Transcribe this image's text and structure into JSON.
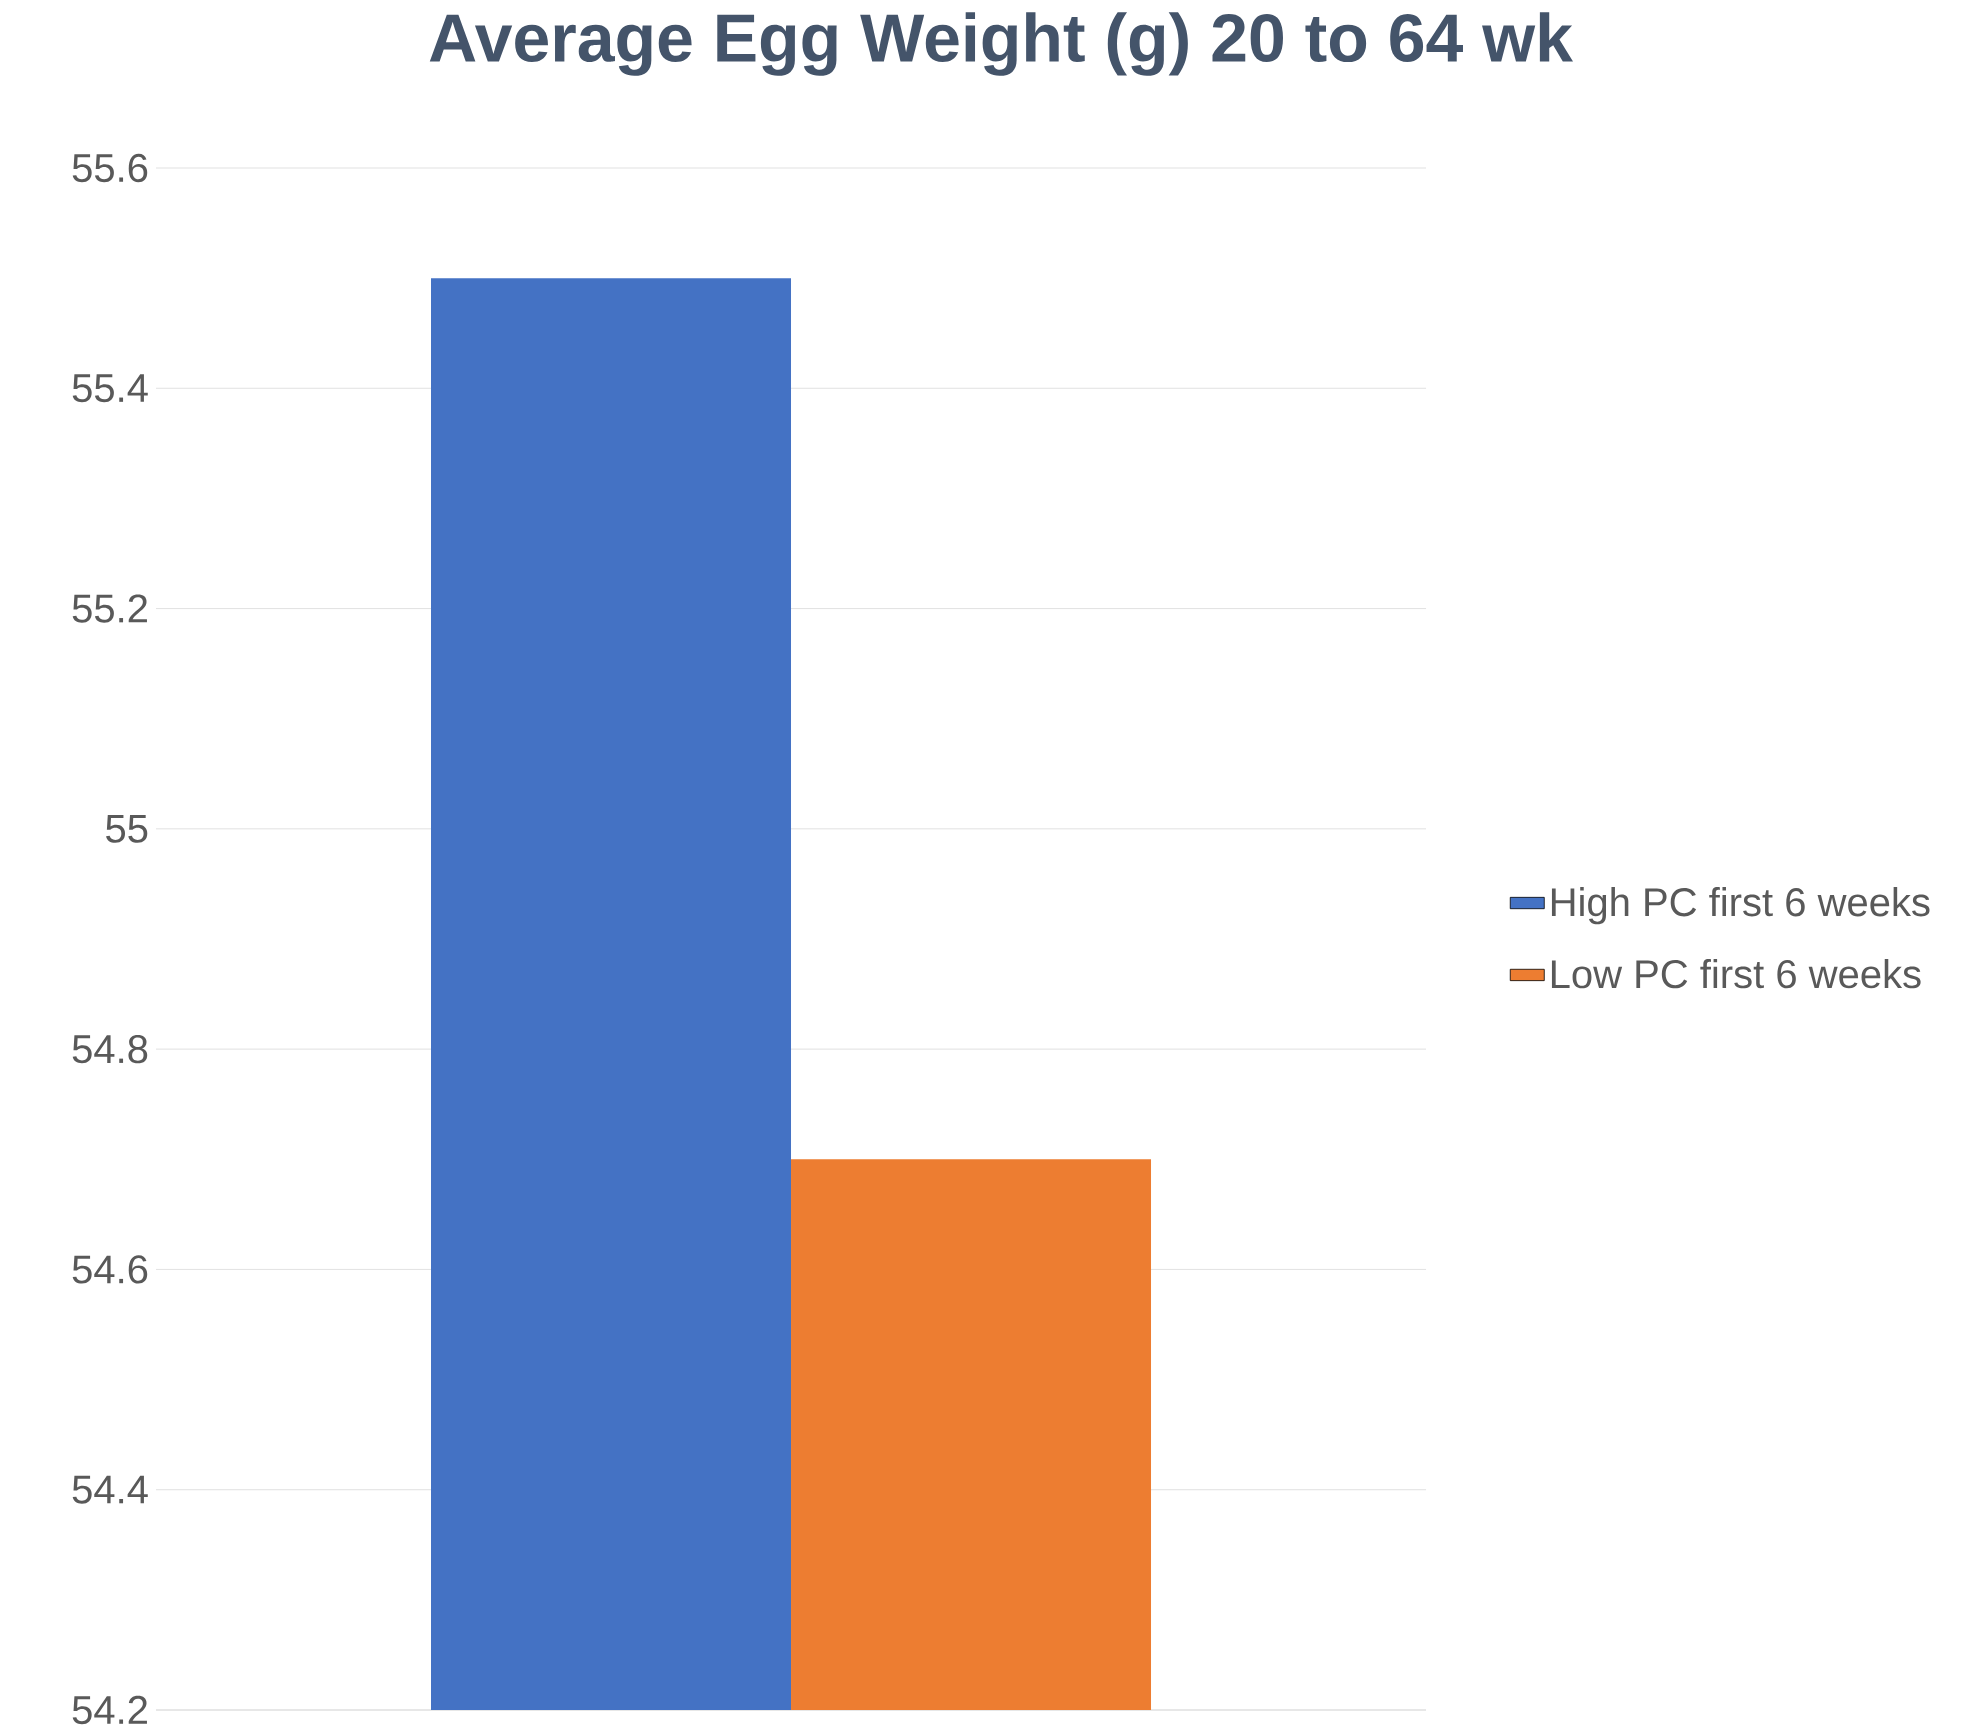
{
  "chart_data": {
    "type": "bar",
    "title": "Average Egg Weight (g) 20 to 64 wk",
    "categories": [
      null
    ],
    "series": [
      {
        "name": "High PC first 6 weeks",
        "color": "#4472c4",
        "values": [
          55.5
        ]
      },
      {
        "name": "Low PC first 6 weeks",
        "color": "#ed7d31",
        "values": [
          54.7
        ]
      }
    ],
    "ylim": [
      54.2,
      55.6
    ],
    "yticks": [
      54.2,
      54.4,
      54.6,
      54.8,
      55,
      55.2,
      55.4,
      55.6
    ],
    "grid": "y",
    "legend": "right",
    "tick_labels": "y"
  }
}
